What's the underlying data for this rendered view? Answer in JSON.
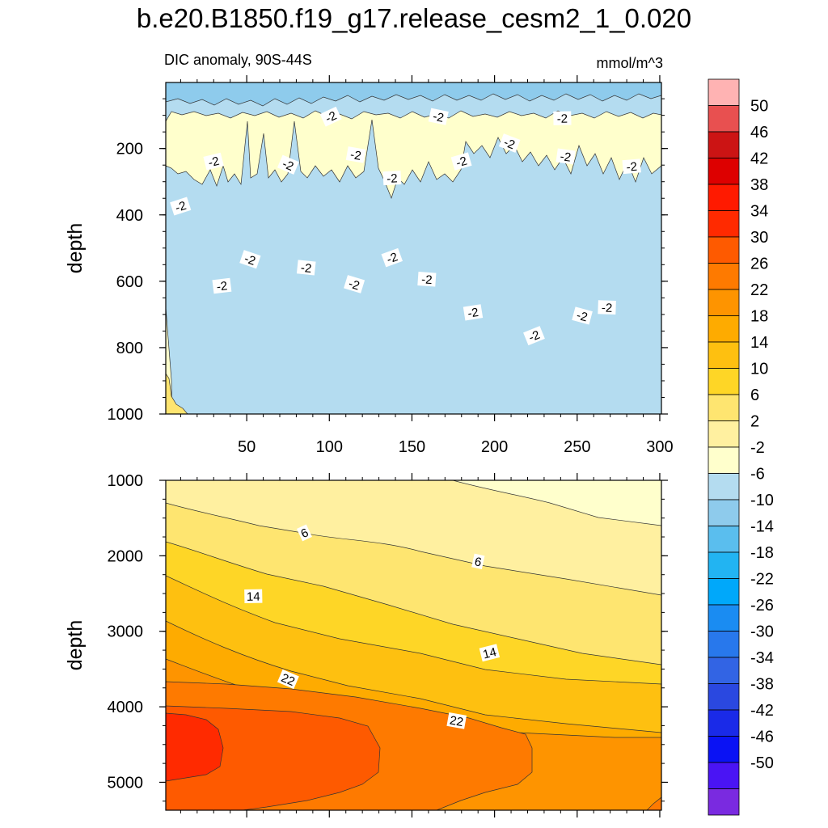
{
  "chart_data": {
    "type": "contour",
    "title": "b.e20.B1850.f19_g17.release_cesm2_1_0.020",
    "subtitle_left": "DIC anomaly, 90S-44S",
    "subtitle_right": "mmol/m^3",
    "colorbar": {
      "levels": [
        50,
        46,
        42,
        38,
        34,
        30,
        26,
        22,
        18,
        14,
        10,
        6,
        2,
        -2,
        -6,
        -10,
        -14,
        -18,
        -22,
        -26,
        -30,
        -34,
        -38,
        -42,
        -46,
        -50
      ],
      "colors": [
        "#ffb3b3",
        "#e85050",
        "#cc1414",
        "#dd0000",
        "#ff1a00",
        "#ff2a00",
        "#fe5a00",
        "#fe7a00",
        "#fe9400",
        "#feab00",
        "#fec010",
        "#fed626",
        "#fee570",
        "#fff0a0",
        "#ffffcc",
        "#b4dcf0",
        "#8ecbec",
        "#5abeee",
        "#22b4f2",
        "#00a8fa",
        "#1a8cf2",
        "#2878ec",
        "#3264e4",
        "#2a48e0",
        "#1a2ae8",
        "#0a12f4",
        "#4a14f4",
        "#7a2ae0"
      ]
    },
    "panels": [
      {
        "ylabel": "depth",
        "ylim": [
          1000,
          1
        ],
        "yticks": [
          200,
          400,
          600,
          800,
          1000
        ],
        "xlim": [
          1,
          301
        ],
        "xticks": [
          50,
          100,
          150,
          200,
          250,
          300
        ],
        "contour_labels": [
          {
            "text": "-2",
            "x": 101,
            "y": 105
          },
          {
            "text": "-2",
            "x": 166,
            "y": 105
          },
          {
            "text": "-2",
            "x": 241,
            "y": 110
          },
          {
            "text": "-2",
            "x": 30,
            "y": 240
          },
          {
            "text": "-2",
            "x": 75,
            "y": 250
          },
          {
            "text": "-2",
            "x": 116,
            "y": 220
          },
          {
            "text": "-2",
            "x": 138,
            "y": 290
          },
          {
            "text": "-2",
            "x": 180,
            "y": 240
          },
          {
            "text": "-2",
            "x": 209,
            "y": 185
          },
          {
            "text": "-2",
            "x": 243,
            "y": 225
          },
          {
            "text": "-2",
            "x": 283,
            "y": 255
          },
          {
            "text": "-2",
            "x": 10,
            "y": 375
          },
          {
            "text": "-2",
            "x": 52,
            "y": 535
          },
          {
            "text": "-2",
            "x": 86,
            "y": 560
          },
          {
            "text": "-2",
            "x": 35,
            "y": 615
          },
          {
            "text": "-2",
            "x": 138,
            "y": 530
          },
          {
            "text": "-2",
            "x": 115,
            "y": 610
          },
          {
            "text": "-2",
            "x": 159,
            "y": 595
          },
          {
            "text": "-2",
            "x": 187,
            "y": 695
          },
          {
            "text": "-2",
            "x": 224,
            "y": 765
          },
          {
            "text": "-2",
            "x": 253,
            "y": 705
          },
          {
            "text": "-2",
            "x": 268,
            "y": 680
          }
        ]
      },
      {
        "ylabel": "depth",
        "ylim": [
          5370,
          1000
        ],
        "yticks": [
          1000,
          2000,
          3000,
          4000,
          5000
        ],
        "xlim": [
          1,
          301
        ],
        "contour_labels": [
          {
            "text": "6",
            "x": 85,
            "y": 1700
          },
          {
            "text": "6",
            "x": 190,
            "y": 2080
          },
          {
            "text": "14",
            "x": 54,
            "y": 2540
          },
          {
            "text": "14",
            "x": 197,
            "y": 3290
          },
          {
            "text": "22",
            "x": 75,
            "y": 3640
          },
          {
            "text": "22",
            "x": 177,
            "y": 4190
          }
        ]
      }
    ]
  }
}
